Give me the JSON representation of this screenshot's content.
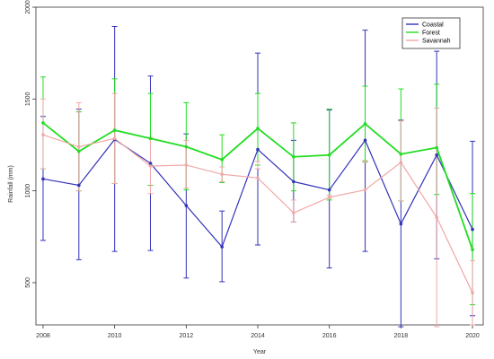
{
  "chart_data": {
    "type": "line",
    "title": "",
    "xlabel": "Year",
    "ylabel": "Rainfall (mm)",
    "xlim": [
      2007.8,
      2020.3
    ],
    "ylim": [
      270,
      2000
    ],
    "x_ticks": [
      2008,
      2010,
      2012,
      2014,
      2016,
      2018,
      2020
    ],
    "y_ticks": [
      500,
      1000,
      1500,
      2000
    ],
    "grid": false,
    "legend_position": "top-right",
    "x": [
      2008,
      2009,
      2010,
      2011,
      2012,
      2013,
      2014,
      2015,
      2016,
      2017,
      2018,
      2019,
      2020
    ],
    "series": [
      {
        "name": "Coastal",
        "color": "#3333bb",
        "values": [
          1065,
          1030,
          1280,
          1150,
          920,
          695,
          1225,
          1050,
          1005,
          1275,
          820,
          1195,
          790
        ],
        "err_low": [
          730,
          625,
          670,
          675,
          525,
          505,
          705,
          830,
          580,
          670,
          260,
          630,
          320
        ],
        "err_high": [
          1405,
          1445,
          1895,
          1625,
          1310,
          890,
          1750,
          1275,
          1440,
          1875,
          1385,
          1760,
          1270
        ]
      },
      {
        "name": "Forest",
        "color": "#22dd22",
        "values": [
          1370,
          1215,
          1330,
          1285,
          1240,
          1170,
          1340,
          1185,
          1195,
          1365,
          1200,
          1235,
          680
        ],
        "err_low": [
          1120,
          1000,
          1040,
          1030,
          1005,
          1045,
          1140,
          1000,
          950,
          1160,
          945,
          980,
          380
        ],
        "err_high": [
          1620,
          1430,
          1610,
          1530,
          1480,
          1305,
          1530,
          1370,
          1445,
          1570,
          1555,
          1580,
          985
        ]
      },
      {
        "name": "Savannah",
        "color": "#f0a8a8",
        "values": [
          1305,
          1240,
          1285,
          1135,
          1140,
          1090,
          1070,
          880,
          965,
          1005,
          1155,
          855,
          445
        ],
        "err_low": [
          1120,
          1000,
          1040,
          985,
          1015,
          1050,
          1120,
          830,
          960,
          1155,
          945,
          260,
          270
        ],
        "err_high": [
          1500,
          1480,
          1530,
          1290,
          1275,
          1130,
          1160,
          950,
          975,
          1165,
          1380,
          1450,
          620
        ]
      }
    ]
  }
}
